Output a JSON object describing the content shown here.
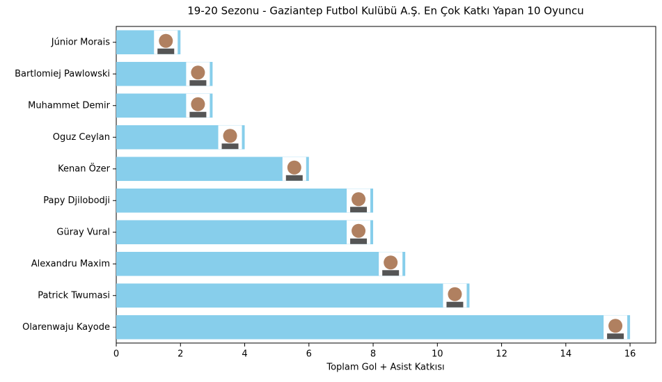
{
  "chart_data": {
    "type": "barh",
    "title": "19-20 Sezonu - Gaziantep Futbol Kulübü A.Ş. En Çok Katkı Yapan 10 Oyuncu",
    "x_label": "Toplam Gol + Asist Katkısı",
    "categories": [
      "Júnior Morais",
      "Bartlomiej Pawlowski",
      "Muhammet Demir",
      "Oguz Ceylan",
      "Kenan Özer",
      "Papy Djilobodji",
      "Güray Vural",
      "Alexandru Maxim",
      "Patrick Twumasi",
      "Olarenwaju Kayode"
    ],
    "values": [
      2,
      3,
      3,
      4,
      6,
      8,
      8,
      9,
      11,
      16
    ],
    "color": "#87ceeb",
    "xlim": [
      0,
      16.8
    ],
    "xticks": [
      0,
      2,
      4,
      6,
      8,
      10,
      12,
      14,
      16
    ]
  }
}
